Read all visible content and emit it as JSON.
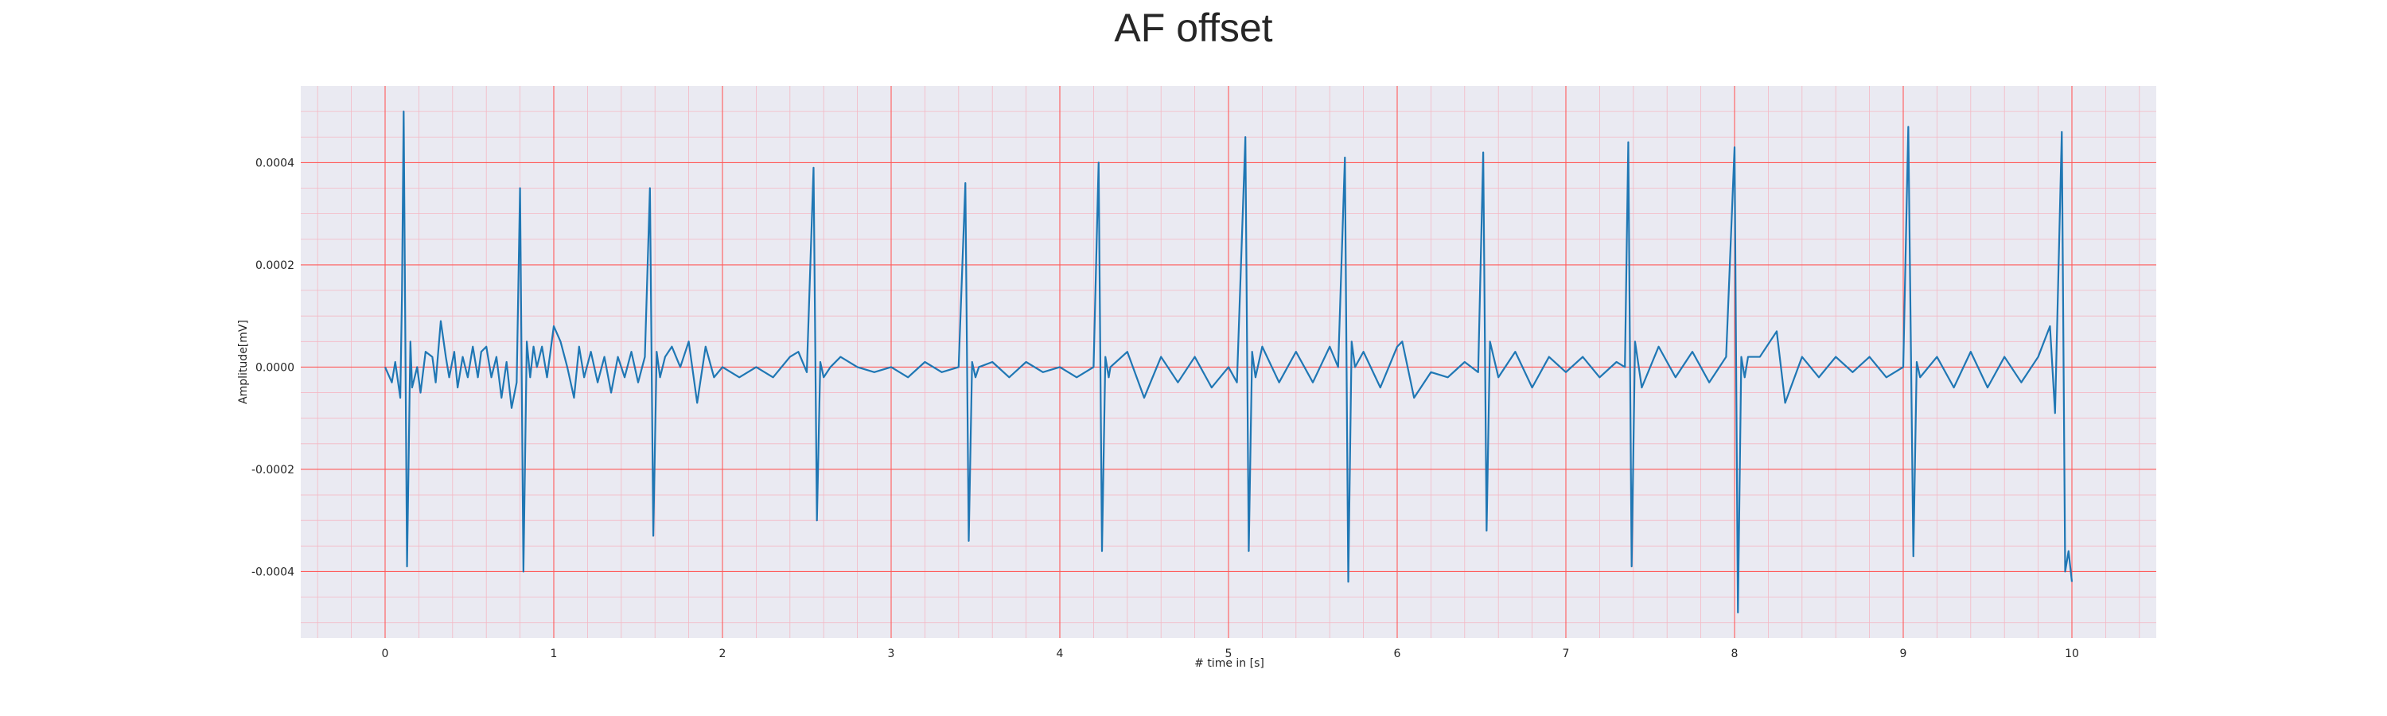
{
  "chart_data": {
    "type": "line",
    "title": "AF offset",
    "xlabel": "# time in [s]",
    "ylabel": "Amplitude[mV]",
    "xlim": [
      -0.5,
      10.5
    ],
    "ylim": [
      -0.00053,
      0.00055
    ],
    "xticks": [
      0,
      1,
      2,
      3,
      4,
      5,
      6,
      7,
      8,
      9,
      10
    ],
    "xtick_labels": [
      "0",
      "1",
      "2",
      "3",
      "4",
      "5",
      "6",
      "7",
      "8",
      "9",
      "10"
    ],
    "yticks": [
      -0.0004,
      -0.0002,
      0.0,
      0.0002,
      0.0004
    ],
    "ytick_labels": [
      "-0.0004",
      "-0.0002",
      "0.0000",
      "0.0002",
      "0.0004"
    ],
    "grid": true,
    "minor_grid": true,
    "colors": {
      "line": "#1f77b4",
      "plot_background": "#eaeaf2",
      "major_grid": "#ff5a5a",
      "minor_grid": "#f4b8c4",
      "text": "#262626"
    },
    "series": [
      {
        "x": [
          0.0,
          0.04,
          0.06,
          0.09,
          0.1,
          0.11,
          0.13,
          0.15,
          0.16,
          0.19,
          0.21,
          0.24,
          0.28,
          0.3,
          0.33,
          0.36,
          0.38,
          0.41,
          0.43,
          0.46,
          0.49,
          0.52,
          0.55,
          0.57,
          0.6,
          0.63,
          0.66,
          0.69,
          0.72,
          0.75,
          0.78,
          0.8,
          0.82,
          0.84,
          0.86,
          0.88,
          0.9,
          0.93,
          0.96,
          1.0,
          1.04,
          1.08,
          1.12,
          1.15,
          1.18,
          1.22,
          1.26,
          1.3,
          1.34,
          1.38,
          1.42,
          1.46,
          1.5,
          1.54,
          1.57,
          1.59,
          1.61,
          1.63,
          1.66,
          1.7,
          1.75,
          1.8,
          1.85,
          1.9,
          1.95,
          2.0,
          2.1,
          2.2,
          2.3,
          2.4,
          2.45,
          2.5,
          2.54,
          2.56,
          2.58,
          2.6,
          2.64,
          2.7,
          2.8,
          2.9,
          3.0,
          3.1,
          3.2,
          3.3,
          3.4,
          3.44,
          3.46,
          3.48,
          3.5,
          3.52,
          3.6,
          3.7,
          3.8,
          3.9,
          4.0,
          4.1,
          4.2,
          4.23,
          4.25,
          4.27,
          4.29,
          4.3,
          4.4,
          4.5,
          4.6,
          4.7,
          4.8,
          4.9,
          5.0,
          5.05,
          5.1,
          5.12,
          5.14,
          5.16,
          5.2,
          5.3,
          5.4,
          5.5,
          5.6,
          5.65,
          5.69,
          5.71,
          5.73,
          5.75,
          5.8,
          5.9,
          6.0,
          6.03,
          6.1,
          6.2,
          6.3,
          6.4,
          6.48,
          6.51,
          6.53,
          6.55,
          6.6,
          6.7,
          6.8,
          6.9,
          7.0,
          7.1,
          7.2,
          7.3,
          7.35,
          7.37,
          7.39,
          7.41,
          7.45,
          7.55,
          7.65,
          7.75,
          7.85,
          7.95,
          8.0,
          8.02,
          8.04,
          8.06,
          8.08,
          8.15,
          8.25,
          8.3,
          8.4,
          8.5,
          8.6,
          8.7,
          8.8,
          8.9,
          9.0,
          9.03,
          9.06,
          9.08,
          9.1,
          9.2,
          9.3,
          9.4,
          9.5,
          9.6,
          9.7,
          9.8,
          9.87,
          9.9,
          9.94,
          9.96,
          9.98,
          10.0
        ],
        "y": [
          0.0,
          -3e-05,
          1e-05,
          -6e-05,
          0.00014,
          0.0005,
          -0.00039,
          5e-05,
          -4e-05,
          0.0,
          -5e-05,
          3e-05,
          2e-05,
          -3e-05,
          9e-05,
          2e-05,
          -2e-05,
          3e-05,
          -4e-05,
          2e-05,
          -2e-05,
          4e-05,
          -2e-05,
          3e-05,
          4e-05,
          -2e-05,
          2e-05,
          -6e-05,
          1e-05,
          -8e-05,
          -3e-05,
          0.00035,
          -0.0004,
          5e-05,
          -2e-05,
          4e-05,
          0.0,
          4e-05,
          -2e-05,
          8e-05,
          5e-05,
          0.0,
          -6e-05,
          4e-05,
          -2e-05,
          3e-05,
          -3e-05,
          2e-05,
          -5e-05,
          2e-05,
          -2e-05,
          3e-05,
          -3e-05,
          2e-05,
          0.00035,
          -0.00033,
          3e-05,
          -2e-05,
          2e-05,
          4e-05,
          0.0,
          5e-05,
          -7e-05,
          4e-05,
          -2e-05,
          0.0,
          -2e-05,
          0.0,
          -2e-05,
          2e-05,
          3e-05,
          -1e-05,
          0.00039,
          -0.0003,
          1e-05,
          -2e-05,
          0.0,
          2e-05,
          0.0,
          -1e-05,
          0.0,
          -2e-05,
          1e-05,
          -1e-05,
          0.0,
          0.00036,
          -0.00034,
          1e-05,
          -2e-05,
          0.0,
          1e-05,
          -2e-05,
          1e-05,
          -1e-05,
          0.0,
          -2e-05,
          0.0,
          0.0004,
          -0.00036,
          2e-05,
          -2e-05,
          0.0,
          3e-05,
          -6e-05,
          2e-05,
          -3e-05,
          2e-05,
          -4e-05,
          0.0,
          -3e-05,
          0.00045,
          -0.00036,
          3e-05,
          -2e-05,
          4e-05,
          -3e-05,
          3e-05,
          -3e-05,
          4e-05,
          0.0,
          0.00041,
          -0.00042,
          5e-05,
          0.0,
          3e-05,
          -4e-05,
          4e-05,
          5e-05,
          -6e-05,
          -1e-05,
          -2e-05,
          1e-05,
          -1e-05,
          0.00042,
          -0.00032,
          5e-05,
          -2e-05,
          3e-05,
          -4e-05,
          2e-05,
          -1e-05,
          2e-05,
          -2e-05,
          1e-05,
          0.0,
          0.00044,
          -0.00039,
          5e-05,
          -4e-05,
          4e-05,
          -2e-05,
          3e-05,
          -3e-05,
          2e-05,
          0.00043,
          -0.00048,
          2e-05,
          -2e-05,
          2e-05,
          2e-05,
          7e-05,
          -7e-05,
          2e-05,
          -2e-05,
          2e-05,
          -1e-05,
          2e-05,
          -2e-05,
          0.0,
          0.00047,
          -0.00037,
          1e-05,
          -2e-05,
          2e-05,
          -4e-05,
          3e-05,
          -4e-05,
          2e-05,
          -3e-05,
          2e-05,
          8e-05,
          -9e-05,
          0.00046,
          -0.0004,
          -0.00036,
          -0.00042
        ]
      }
    ]
  }
}
